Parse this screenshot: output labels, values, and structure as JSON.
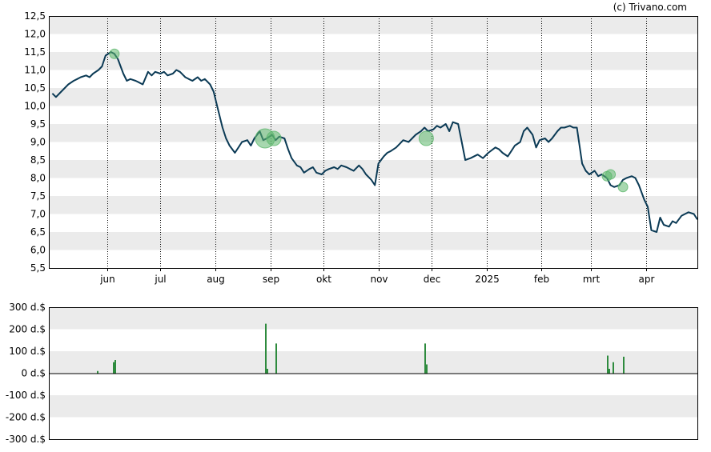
{
  "credit": "(c) Trivano.com",
  "colors": {
    "band": "#ebebeb",
    "price_line": "#0b3a55",
    "marker_fill": "#5fb86e",
    "bar": "#2e8b3e",
    "grid_vertical": "#000000"
  },
  "chart_data": [
    {
      "type": "line",
      "title": "",
      "xlabel": "",
      "ylabel": "",
      "ylim": [
        5.5,
        12.5
      ],
      "y_ticks": [
        "5,5",
        "6,0",
        "6,5",
        "7,0",
        "7,5",
        "8,0",
        "8,5",
        "9,0",
        "9,5",
        "10,0",
        "10,5",
        "11,0",
        "11,5",
        "12,0",
        "12,5"
      ],
      "x_ticks": [
        "jun",
        "jul",
        "aug",
        "sep",
        "okt",
        "nov",
        "dec",
        "2025",
        "feb",
        "mrt",
        "apr"
      ],
      "grid": "alternating horizontal bands, dotted vertical lines at month ticks",
      "series": [
        {
          "points": [
            [
              "2024-05-01",
              10.35
            ],
            [
              "2024-05-03",
              10.25
            ],
            [
              "2024-05-06",
              10.4
            ],
            [
              "2024-05-08",
              10.5
            ],
            [
              "2024-05-10",
              10.6
            ],
            [
              "2024-05-13",
              10.7
            ],
            [
              "2024-05-15",
              10.75
            ],
            [
              "2024-05-17",
              10.8
            ],
            [
              "2024-05-20",
              10.85
            ],
            [
              "2024-05-22",
              10.8
            ],
            [
              "2024-05-24",
              10.9
            ],
            [
              "2024-05-27",
              11.0
            ],
            [
              "2024-05-29",
              11.1
            ],
            [
              "2024-05-31",
              11.4
            ],
            [
              "2024-06-03",
              11.5
            ],
            [
              "2024-06-05",
              11.45
            ],
            [
              "2024-06-07",
              11.3
            ],
            [
              "2024-06-10",
              10.9
            ],
            [
              "2024-06-12",
              10.7
            ],
            [
              "2024-06-14",
              10.75
            ],
            [
              "2024-06-17",
              10.7
            ],
            [
              "2024-06-19",
              10.65
            ],
            [
              "2024-06-21",
              10.6
            ],
            [
              "2024-06-24",
              10.95
            ],
            [
              "2024-06-26",
              10.85
            ],
            [
              "2024-06-28",
              10.95
            ],
            [
              "2024-07-01",
              10.9
            ],
            [
              "2024-07-03",
              10.95
            ],
            [
              "2024-07-05",
              10.85
            ],
            [
              "2024-07-08",
              10.9
            ],
            [
              "2024-07-10",
              11.0
            ],
            [
              "2024-07-12",
              10.95
            ],
            [
              "2024-07-15",
              10.8
            ],
            [
              "2024-07-17",
              10.75
            ],
            [
              "2024-07-19",
              10.7
            ],
            [
              "2024-07-22",
              10.8
            ],
            [
              "2024-07-24",
              10.7
            ],
            [
              "2024-07-26",
              10.75
            ],
            [
              "2024-07-29",
              10.6
            ],
            [
              "2024-07-31",
              10.4
            ],
            [
              "2024-08-02",
              10.0
            ],
            [
              "2024-08-05",
              9.4
            ],
            [
              "2024-08-07",
              9.1
            ],
            [
              "2024-08-09",
              8.9
            ],
            [
              "2024-08-12",
              8.7
            ],
            [
              "2024-08-14",
              8.85
            ],
            [
              "2024-08-16",
              9.0
            ],
            [
              "2024-08-19",
              9.05
            ],
            [
              "2024-08-21",
              8.9
            ],
            [
              "2024-08-23",
              9.1
            ],
            [
              "2024-08-26",
              9.3
            ],
            [
              "2024-08-28",
              9.05
            ],
            [
              "2024-08-30",
              9.1
            ],
            [
              "2024-09-02",
              9.2
            ],
            [
              "2024-09-04",
              9.05
            ],
            [
              "2024-09-06",
              9.15
            ],
            [
              "2024-09-09",
              9.1
            ],
            [
              "2024-09-11",
              8.8
            ],
            [
              "2024-09-13",
              8.55
            ],
            [
              "2024-09-16",
              8.35
            ],
            [
              "2024-09-18",
              8.3
            ],
            [
              "2024-09-20",
              8.15
            ],
            [
              "2024-09-23",
              8.25
            ],
            [
              "2024-09-25",
              8.3
            ],
            [
              "2024-09-27",
              8.15
            ],
            [
              "2024-09-30",
              8.1
            ],
            [
              "2024-10-02",
              8.2
            ],
            [
              "2024-10-04",
              8.25
            ],
            [
              "2024-10-07",
              8.3
            ],
            [
              "2024-10-09",
              8.25
            ],
            [
              "2024-10-11",
              8.35
            ],
            [
              "2024-10-14",
              8.3
            ],
            [
              "2024-10-16",
              8.25
            ],
            [
              "2024-10-18",
              8.2
            ],
            [
              "2024-10-21",
              8.35
            ],
            [
              "2024-10-23",
              8.25
            ],
            [
              "2024-10-25",
              8.1
            ],
            [
              "2024-10-28",
              7.95
            ],
            [
              "2024-10-30",
              7.8
            ],
            [
              "2024-11-01",
              8.4
            ],
            [
              "2024-11-04",
              8.6
            ],
            [
              "2024-11-06",
              8.7
            ],
            [
              "2024-11-08",
              8.75
            ],
            [
              "2024-11-11",
              8.85
            ],
            [
              "2024-11-13",
              8.95
            ],
            [
              "2024-11-15",
              9.05
            ],
            [
              "2024-11-18",
              9.0
            ],
            [
              "2024-11-20",
              9.1
            ],
            [
              "2024-11-22",
              9.2
            ],
            [
              "2024-11-25",
              9.3
            ],
            [
              "2024-11-27",
              9.4
            ],
            [
              "2024-11-29",
              9.3
            ],
            [
              "2024-12-02",
              9.35
            ],
            [
              "2024-12-04",
              9.45
            ],
            [
              "2024-12-06",
              9.4
            ],
            [
              "2024-12-09",
              9.5
            ],
            [
              "2024-12-11",
              9.3
            ],
            [
              "2024-12-13",
              9.55
            ],
            [
              "2024-12-16",
              9.5
            ],
            [
              "2024-12-18",
              9.0
            ],
            [
              "2024-12-20",
              8.5
            ],
            [
              "2024-12-23",
              8.55
            ],
            [
              "2024-12-27",
              8.65
            ],
            [
              "2024-12-30",
              8.55
            ],
            [
              "2025-01-02",
              8.7
            ],
            [
              "2025-01-06",
              8.85
            ],
            [
              "2025-01-08",
              8.8
            ],
            [
              "2025-01-10",
              8.7
            ],
            [
              "2025-01-13",
              8.6
            ],
            [
              "2025-01-15",
              8.75
            ],
            [
              "2025-01-17",
              8.9
            ],
            [
              "2025-01-20",
              9.0
            ],
            [
              "2025-01-22",
              9.3
            ],
            [
              "2025-01-24",
              9.4
            ],
            [
              "2025-01-27",
              9.2
            ],
            [
              "2025-01-29",
              8.85
            ],
            [
              "2025-01-31",
              9.05
            ],
            [
              "2025-02-03",
              9.1
            ],
            [
              "2025-02-05",
              9.0
            ],
            [
              "2025-02-07",
              9.1
            ],
            [
              "2025-02-10",
              9.3
            ],
            [
              "2025-02-12",
              9.4
            ],
            [
              "2025-02-14",
              9.4
            ],
            [
              "2025-02-17",
              9.45
            ],
            [
              "2025-02-19",
              9.4
            ],
            [
              "2025-02-21",
              9.4
            ],
            [
              "2025-02-24",
              8.4
            ],
            [
              "2025-02-26",
              8.2
            ],
            [
              "2025-02-28",
              8.1
            ],
            [
              "2025-03-03",
              8.2
            ],
            [
              "2025-03-05",
              8.05
            ],
            [
              "2025-03-07",
              8.1
            ],
            [
              "2025-03-10",
              8.0
            ],
            [
              "2025-03-12",
              7.8
            ],
            [
              "2025-03-14",
              7.75
            ],
            [
              "2025-03-17",
              7.8
            ],
            [
              "2025-03-19",
              7.95
            ],
            [
              "2025-03-21",
              8.0
            ],
            [
              "2025-03-24",
              8.05
            ],
            [
              "2025-03-26",
              8.0
            ],
            [
              "2025-03-28",
              7.8
            ],
            [
              "2025-03-31",
              7.4
            ],
            [
              "2025-04-02",
              7.2
            ],
            [
              "2025-04-04",
              6.55
            ],
            [
              "2025-04-07",
              6.5
            ],
            [
              "2025-04-09",
              6.9
            ],
            [
              "2025-04-11",
              6.7
            ],
            [
              "2025-04-14",
              6.65
            ],
            [
              "2025-04-16",
              6.8
            ],
            [
              "2025-04-18",
              6.75
            ],
            [
              "2025-04-21",
              6.95
            ],
            [
              "2025-04-23",
              7.0
            ],
            [
              "2025-04-25",
              7.05
            ],
            [
              "2025-04-28",
              7.0
            ],
            [
              "2025-04-30",
              6.85
            ]
          ]
        }
      ],
      "markers": [
        {
          "date": "2024-06-05",
          "value": 11.45,
          "volume": 1
        },
        {
          "date": "2024-08-29",
          "value": 9.1,
          "volume": 3
        },
        {
          "date": "2024-09-03",
          "value": 9.1,
          "volume": 2
        },
        {
          "date": "2024-11-28",
          "value": 9.1,
          "volume": 2
        },
        {
          "date": "2025-03-10",
          "value": 8.05,
          "volume": 1
        },
        {
          "date": "2025-03-12",
          "value": 8.1,
          "volume": 1
        },
        {
          "date": "2025-03-19",
          "value": 7.75,
          "volume": 1
        }
      ]
    },
    {
      "type": "bar",
      "title": "",
      "xlabel": "",
      "ylabel": "",
      "ylim": [
        -300,
        300
      ],
      "y_ticks": [
        "300 d.$",
        "200 d.$",
        "100 d.$",
        "0 d.$",
        "-100 d.$",
        "-200 d.$",
        "-300 d.$"
      ],
      "grid": "alternating horizontal bands",
      "bars": [
        {
          "date": "2024-05-26",
          "value": 10
        },
        {
          "date": "2024-06-04",
          "value": 50
        },
        {
          "date": "2024-06-05",
          "value": 60
        },
        {
          "date": "2024-08-29",
          "value": 225
        },
        {
          "date": "2024-08-30",
          "value": 20
        },
        {
          "date": "2024-09-04",
          "value": 135
        },
        {
          "date": "2024-11-27",
          "value": 135
        },
        {
          "date": "2024-11-28",
          "value": 40
        },
        {
          "date": "2025-03-10",
          "value": 80
        },
        {
          "date": "2025-03-11",
          "value": 20
        },
        {
          "date": "2025-03-13",
          "value": 50
        },
        {
          "date": "2025-03-19",
          "value": 75
        }
      ]
    }
  ]
}
